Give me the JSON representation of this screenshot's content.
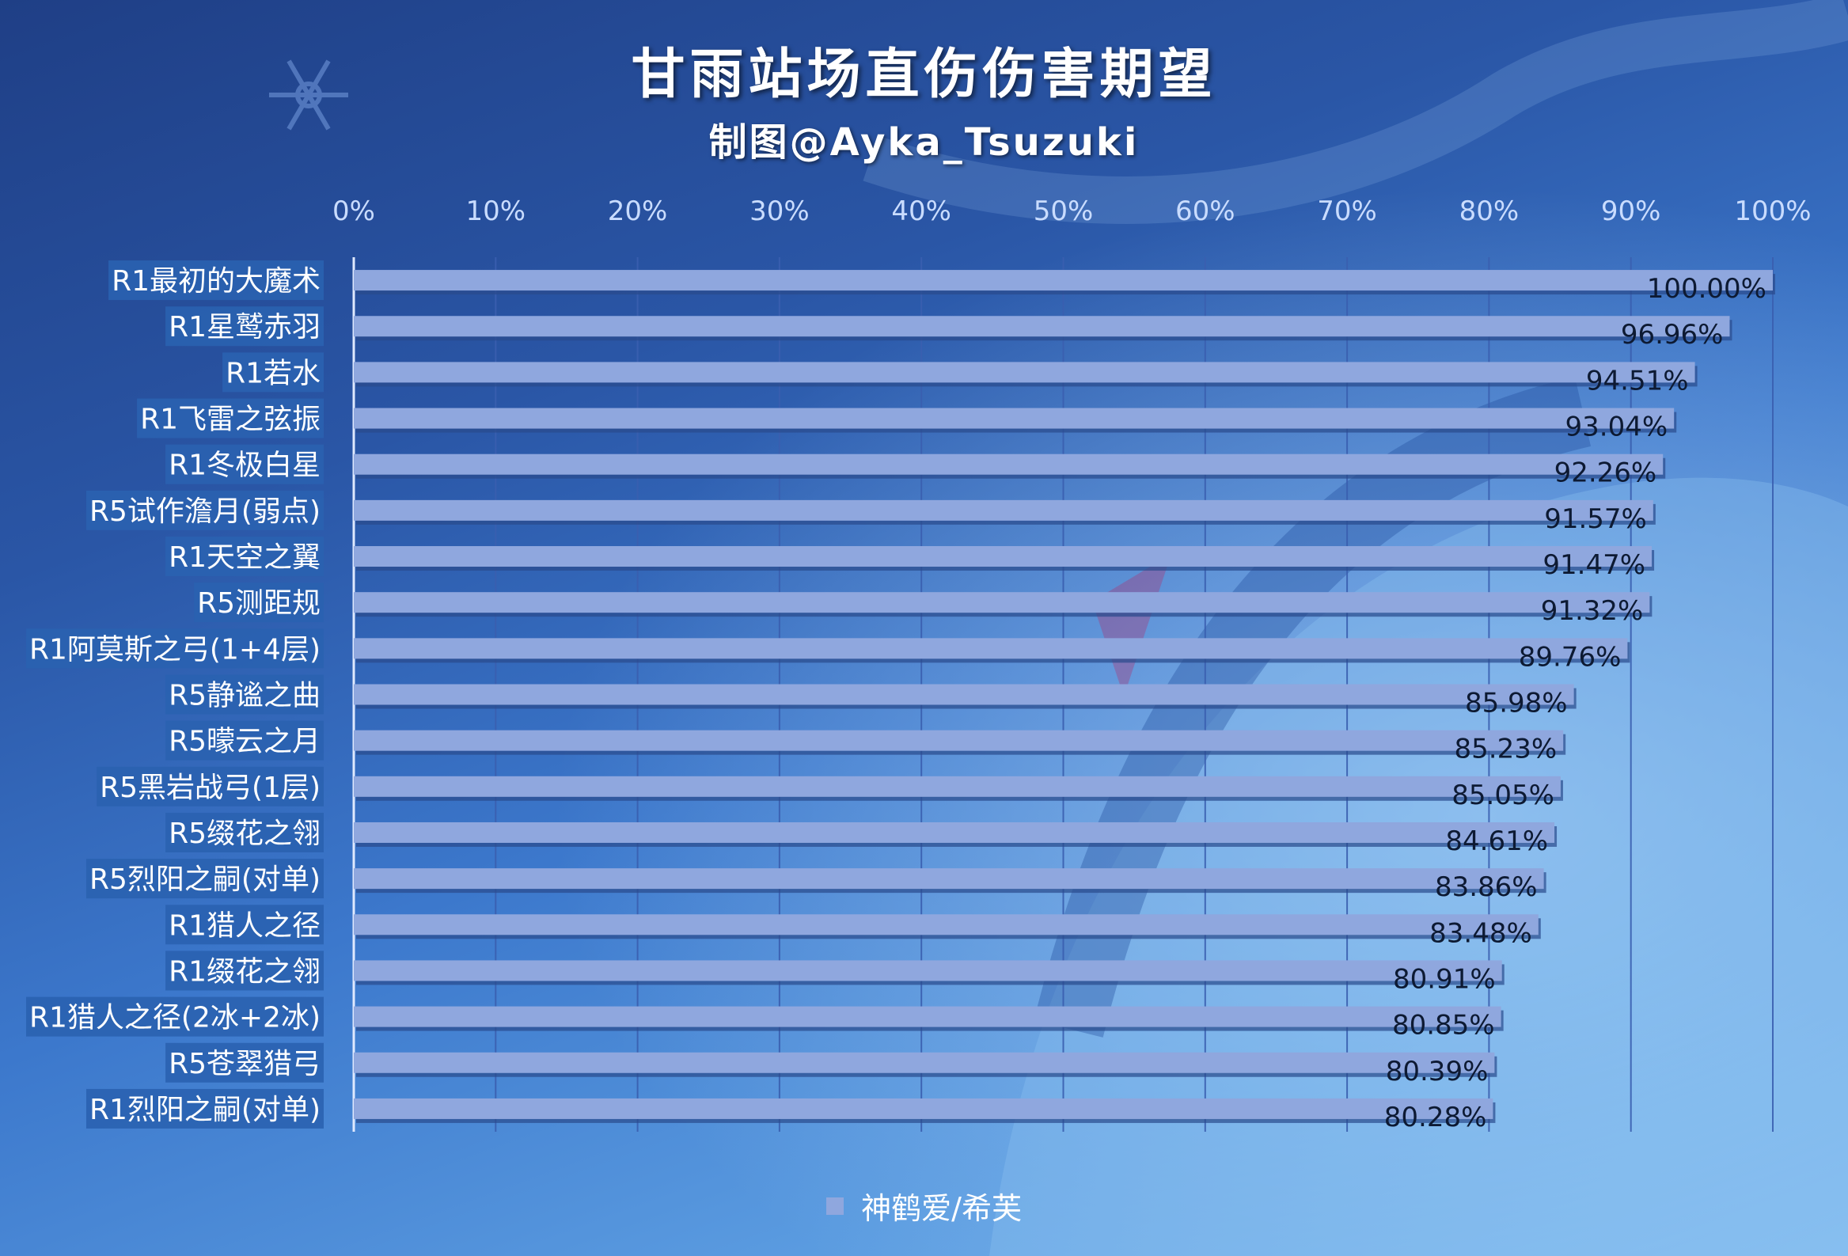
{
  "title": "甘雨站场直伤伤害期望",
  "subtitle": "制图@Ayka_Tsuzuki",
  "colors": {
    "bar": "#8fa7de",
    "bar_shadow": "#2a4a8c",
    "label_bg": "#2a62b0",
    "grid": "#3a5fb0",
    "axis_text": "#c9dcff"
  },
  "chart_data": {
    "type": "bar",
    "orientation": "horizontal",
    "title": "甘雨站场直伤伤害期望",
    "subtitle": "制图@Ayka_Tsuzuki",
    "xlim": [
      0,
      100
    ],
    "x_ticks": [
      "0%",
      "10%",
      "20%",
      "30%",
      "40%",
      "50%",
      "60%",
      "70%",
      "80%",
      "90%",
      "100%"
    ],
    "grid": true,
    "legend_position": "bottom",
    "categories": [
      "R1最初的大魔术",
      "R1星鹫赤羽",
      "R1若水",
      "R1飞雷之弦振",
      "R1冬极白星",
      "R5试作澹月(弱点)",
      "R1天空之翼",
      "R5测距规",
      "R1阿莫斯之弓(1+4层)",
      "R5静谧之曲",
      "R5曚云之月",
      "R5黑岩战弓(1层)",
      "R5缀花之翎",
      "R5烈阳之嗣(对单)",
      "R1猎人之径",
      "R1缀花之翎",
      "R1猎人之径(2冰+2冰)",
      "R5苍翠猎弓",
      "R1烈阳之嗣(对单)"
    ],
    "series": [
      {
        "name": "神鹤爱/希芙",
        "values": [
          100.0,
          96.96,
          94.51,
          93.04,
          92.26,
          91.57,
          91.47,
          91.32,
          89.76,
          85.98,
          85.23,
          85.05,
          84.61,
          83.86,
          83.48,
          80.91,
          80.85,
          80.39,
          80.28
        ],
        "labels": [
          "100.00%",
          "96.96%",
          "94.51%",
          "93.04%",
          "92.26%",
          "91.57%",
          "91.47%",
          "91.32%",
          "89.76%",
          "85.98%",
          "85.23%",
          "85.05%",
          "84.61%",
          "83.86%",
          "83.48%",
          "80.91%",
          "80.85%",
          "80.39%",
          "80.28%"
        ]
      }
    ]
  }
}
